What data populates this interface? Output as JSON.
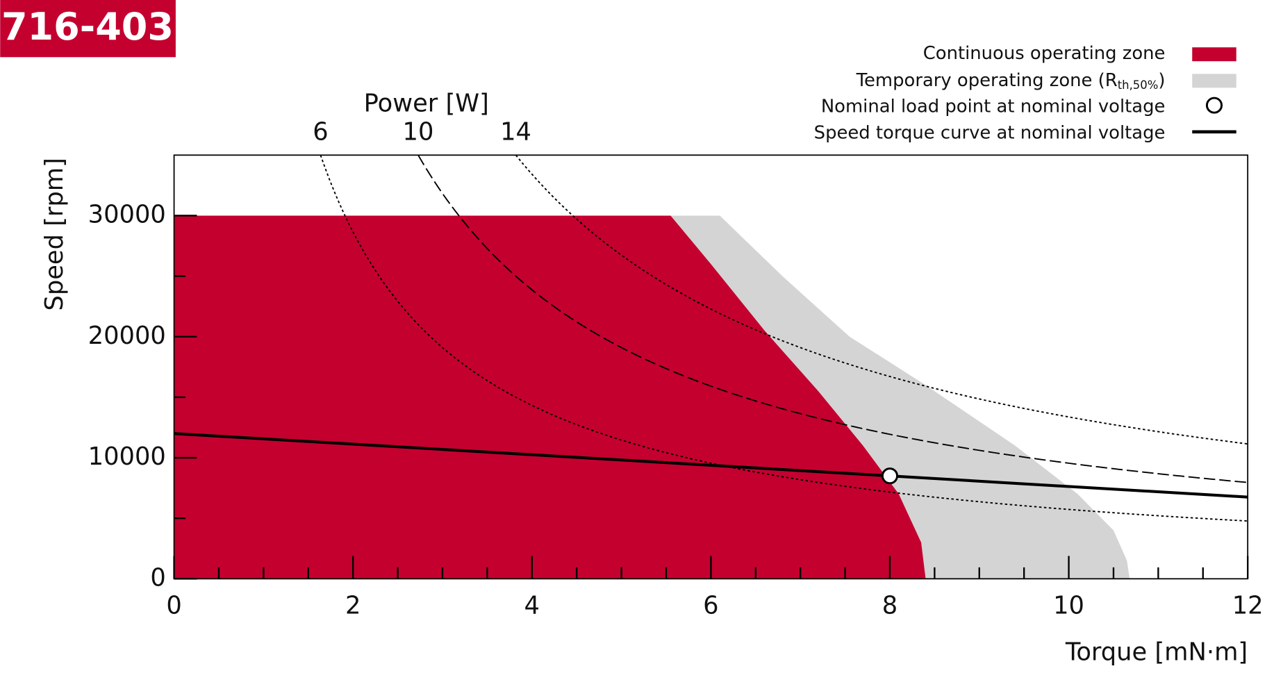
{
  "chart_data": {
    "type": "line",
    "title": "716-403",
    "x_label": "Torque [mN·m]",
    "y_label": "Speed [rpm]",
    "power_label": "Power [W]",
    "xlim": [
      0,
      12
    ],
    "xticks": [
      0,
      2,
      4,
      6,
      8,
      10,
      12
    ],
    "xticks_minor": [
      0.5,
      1,
      1.5,
      2.5,
      3,
      3.5,
      4.5,
      5,
      5.5,
      6.5,
      7,
      7.5,
      8.5,
      9,
      9.5,
      10.5,
      11,
      11.5
    ],
    "ylim": [
      0,
      35000
    ],
    "yticks": [
      0,
      10000,
      20000,
      30000
    ],
    "yticks_minor": [
      5000,
      15000,
      25000
    ],
    "power_curves": [
      {
        "value": 6,
        "style": "dotted"
      },
      {
        "value": 10,
        "style": "dashed"
      },
      {
        "value": 14,
        "style": "dotted"
      }
    ],
    "zones": [
      {
        "name": [
          "Temporary operating zone (R",
          "th,50%",
          ")"
        ],
        "color": "#d4d4d4",
        "x": [
          0,
          6.1,
          6.8,
          7.55,
          8.4,
          9.4,
          10.1,
          10.5,
          10.65,
          10.68
        ],
        "values": [
          30000,
          30000,
          25000,
          20000,
          16000,
          11000,
          7000,
          4000,
          1500,
          0
        ]
      },
      {
        "name": "Continuous operating zone",
        "color": "#c4002f",
        "x": [
          0,
          5.55,
          6.0,
          6.6,
          7.2,
          7.7,
          8.1,
          8.35,
          8.4
        ],
        "values": [
          30000,
          30000,
          26000,
          20500,
          15500,
          11000,
          7000,
          3000,
          0
        ]
      }
    ],
    "points": [
      {
        "name": "Nominal load point at nominal voltage",
        "x": [
          8
        ],
        "values": [
          8500
        ]
      }
    ],
    "series": [
      {
        "name": "Speed torque curve at nominal voltage",
        "color": "#000000",
        "x": [
          0,
          8,
          12
        ],
        "values": [
          12000,
          8500,
          6750
        ]
      }
    ]
  }
}
